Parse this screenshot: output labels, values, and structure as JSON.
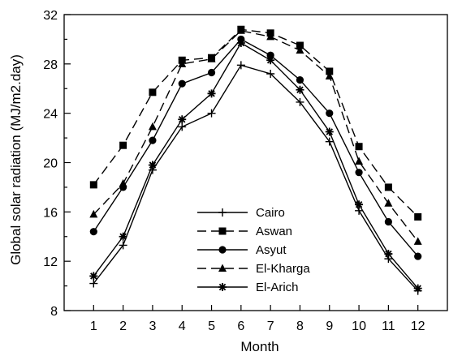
{
  "chart_data": {
    "type": "line",
    "title": "",
    "xlabel": "Month",
    "ylabel": "Global solar radiation (MJ/m2.day)",
    "xlim": [
      0,
      13
    ],
    "ylim": [
      8,
      32
    ],
    "x": [
      1,
      2,
      3,
      4,
      5,
      6,
      7,
      8,
      9,
      10,
      11,
      12
    ],
    "xticks": [
      "1",
      "2",
      "3",
      "4",
      "5",
      "6",
      "7",
      "8",
      "9",
      "10",
      "11",
      "12"
    ],
    "yticks": [
      8,
      12,
      16,
      20,
      24,
      28,
      32
    ],
    "grid": false,
    "legend_position": "bottom-center",
    "series": [
      {
        "name": "Cairo",
        "marker": "plus",
        "line": "solid",
        "values": [
          10.2,
          13.3,
          19.4,
          22.9,
          24.0,
          27.9,
          27.2,
          24.9,
          21.7,
          16.1,
          12.2,
          9.6
        ]
      },
      {
        "name": "Aswan",
        "marker": "square",
        "line": "dashed",
        "values": [
          18.2,
          21.4,
          25.7,
          28.3,
          28.5,
          30.8,
          30.5,
          29.5,
          27.4,
          21.3,
          18.0,
          15.6
        ]
      },
      {
        "name": "Asyut",
        "marker": "circle",
        "line": "solid",
        "values": [
          14.4,
          18.0,
          21.8,
          26.4,
          27.3,
          30.0,
          28.7,
          26.7,
          24.0,
          19.2,
          15.2,
          12.4
        ]
      },
      {
        "name": "El-Kharga",
        "marker": "triangle",
        "line": "dashed",
        "values": [
          15.8,
          18.3,
          22.9,
          28.0,
          28.4,
          30.7,
          30.2,
          29.1,
          27.0,
          20.1,
          16.7,
          13.6
        ]
      },
      {
        "name": "El-Arich",
        "marker": "star",
        "line": "solid",
        "values": [
          10.8,
          14.0,
          19.8,
          23.5,
          25.6,
          29.7,
          28.3,
          25.9,
          22.5,
          16.6,
          12.6,
          9.8
        ]
      }
    ]
  }
}
